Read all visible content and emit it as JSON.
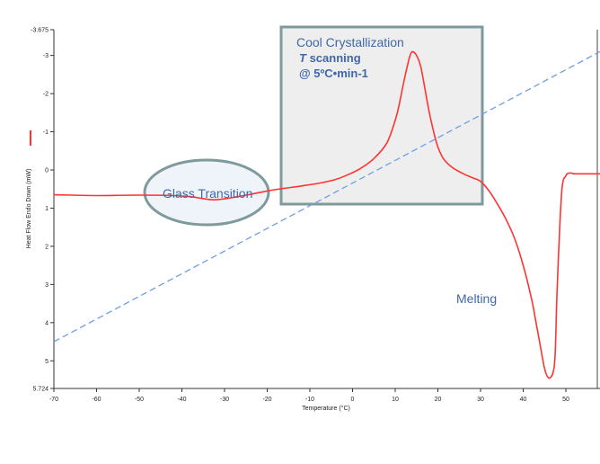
{
  "chart_data": {
    "type": "line",
    "xlabel": "Temperature (°C)",
    "ylabel": "Heat Flow Endo Down (mW)",
    "xlim": [
      -70,
      58
    ],
    "ylim": [
      5.724,
      -3.675
    ],
    "y_inverted": true,
    "x_ticks": [
      "-70",
      "-60",
      "-50",
      "-40",
      "-30",
      "-20",
      "-10",
      "0",
      "10",
      "20",
      "30",
      "40",
      "50"
    ],
    "y_ticks": [
      "-3.675",
      "-3",
      "-2",
      "-1",
      "0",
      "1",
      "2",
      "3",
      "4",
      "5",
      "5.724"
    ],
    "series": [
      {
        "type": "heat-flow",
        "color": "#ff3333",
        "x": [
          -70,
          -60,
          -50,
          -42,
          -38,
          -35,
          -33,
          -31,
          -28,
          -24,
          -20,
          -16,
          -12,
          -8,
          -4,
          -1,
          2,
          5,
          8,
          10,
          11,
          12,
          13,
          13.5,
          14,
          15,
          16,
          17,
          18,
          19,
          20,
          21,
          22,
          23,
          24,
          26,
          28,
          30,
          32,
          34,
          36,
          38,
          40,
          42,
          43,
          44,
          45,
          46,
          47,
          47.5,
          48,
          49,
          50,
          51,
          52,
          55,
          58
        ],
        "y": [
          0.65,
          0.67,
          0.66,
          0.67,
          0.7,
          0.75,
          0.78,
          0.77,
          0.72,
          0.64,
          0.55,
          0.48,
          0.42,
          0.35,
          0.25,
          0.12,
          -0.05,
          -0.3,
          -0.7,
          -1.3,
          -1.75,
          -2.3,
          -2.8,
          -3.0,
          -3.1,
          -3.0,
          -2.7,
          -2.1,
          -1.5,
          -1.0,
          -0.6,
          -0.35,
          -0.2,
          -0.1,
          -0.02,
          0.1,
          0.2,
          0.3,
          0.55,
          0.9,
          1.3,
          1.8,
          2.5,
          3.4,
          4.0,
          4.6,
          5.2,
          5.45,
          5.3,
          4.8,
          3.0,
          0.6,
          0.15,
          0.08,
          0.1,
          0.1,
          0.1
        ]
      },
      {
        "type": "temperature-scan",
        "color": "#6f9ee6",
        "dashed": true,
        "x": [
          -70,
          58
        ],
        "y": [
          4.5,
          -3.1
        ]
      }
    ],
    "legend": [
      {
        "color": "#ff3333"
      }
    ],
    "annotations": {
      "cool_crystallization": "Cool Crystallization",
      "scan_italic": "T",
      "scan_rest": " scanning",
      "scan_rate": "@ 5ºC•min-1",
      "glass_transition": "Glass Transition",
      "melting": "Melting"
    }
  }
}
